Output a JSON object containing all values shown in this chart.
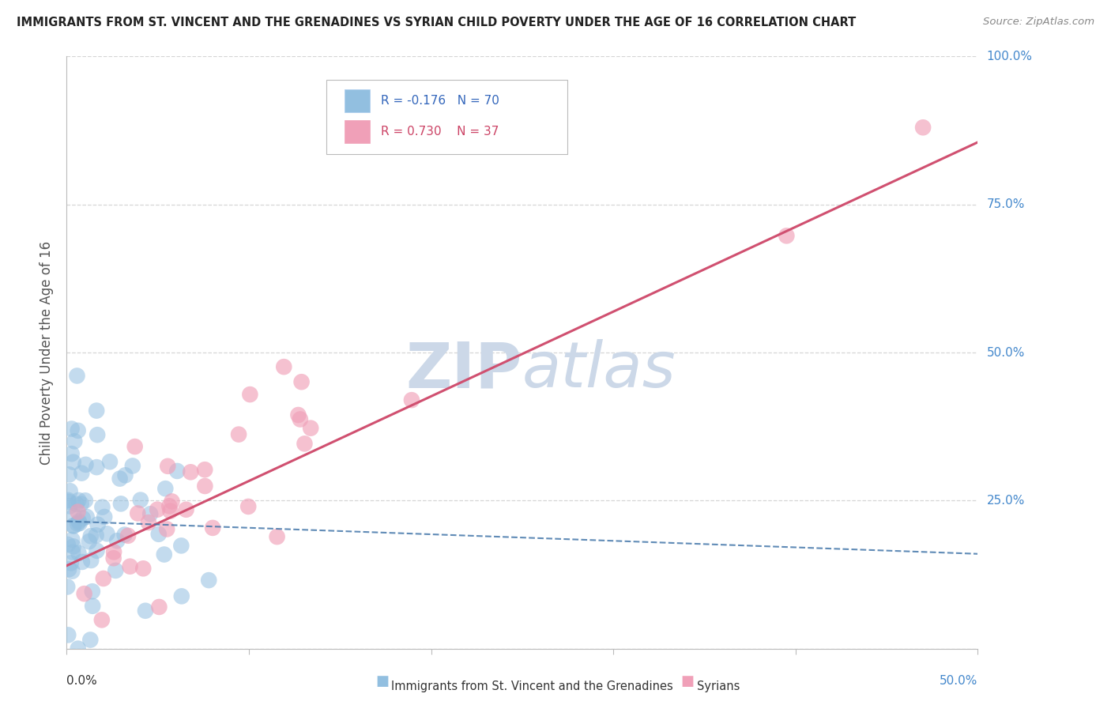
{
  "title": "IMMIGRANTS FROM ST. VINCENT AND THE GRENADINES VS SYRIAN CHILD POVERTY UNDER THE AGE OF 16 CORRELATION CHART",
  "source": "Source: ZipAtlas.com",
  "ylabel": "Child Poverty Under the Age of 16",
  "blue_color": "#92bfe0",
  "pink_color": "#f0a0b8",
  "blue_trend_color": "#4477aa",
  "pink_trend_color": "#d05070",
  "watermark_color": "#ccd8e8",
  "xlim": [
    0.0,
    0.5
  ],
  "ylim": [
    0.0,
    1.0
  ],
  "pink_trend_x0": 0.0,
  "pink_trend_y0": 0.14,
  "pink_trend_x1": 0.5,
  "pink_trend_y1": 0.855,
  "blue_trend_x0": 0.0,
  "blue_trend_y0": 0.215,
  "blue_trend_x1": 0.5,
  "blue_trend_y1": 0.16,
  "blue_seed": 42,
  "pink_seed": 123
}
